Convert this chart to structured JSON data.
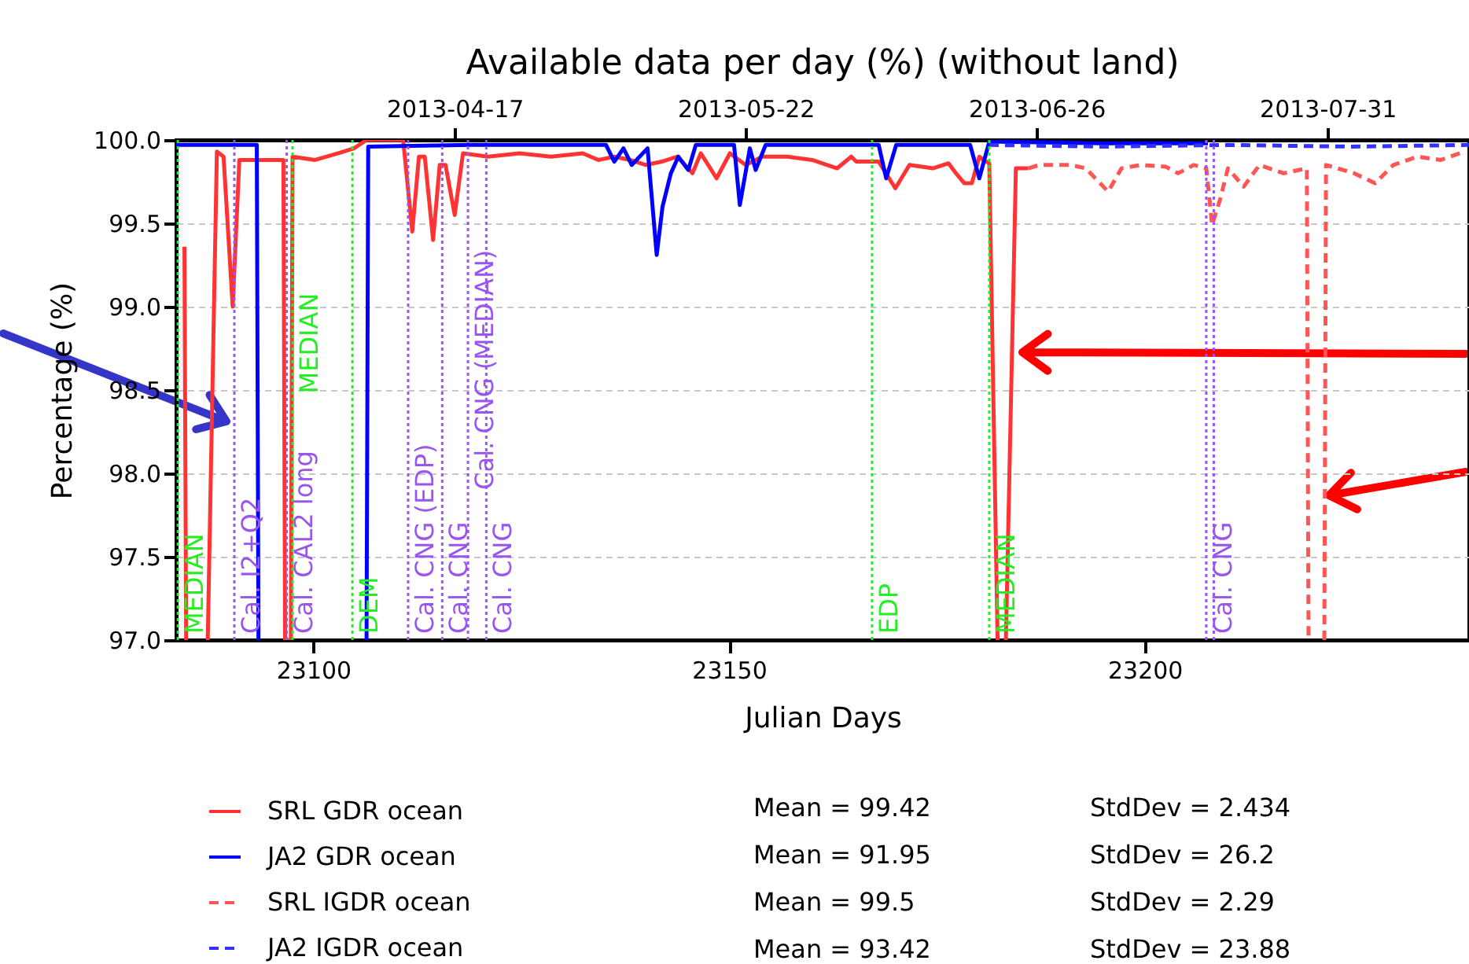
{
  "chart_data": {
    "type": "line",
    "title": "Available data per day (%) (without land)",
    "xlabel": "Julian Days",
    "ylabel": "Percentage (%)",
    "xlim": [
      23083.5,
      23239
    ],
    "xticks": [
      23100,
      23150,
      23200
    ],
    "x2lim": [
      "2013-03-14T12:00",
      "2013-08-17"
    ],
    "x2ticks": [
      "2013-04-17",
      "2013-05-22",
      "2013-06-26",
      "2013-07-31"
    ],
    "ylim": [
      97,
      100
    ],
    "yticks": [
      {
        "value": 97,
        "label": "97.0"
      },
      97.5,
      {
        "value": 98,
        "label": "98.0"
      },
      98.5,
      {
        "value": 99,
        "label": "99.0"
      },
      99.5,
      {
        "value": 100,
        "label": "100.0"
      }
    ],
    "grid": "y",
    "legend": "bottom",
    "series": [
      {
        "name": "SRL GDR ocean",
        "color": "#ff3333",
        "line_style": "solid",
        "x": [
          23084.5,
          23084.7,
          23086,
          23087.3,
          23088.4,
          23089.2,
          23090.3,
          23091.1,
          23092.6,
          23094.9,
          23096.4,
          23096.6,
          23097.3,
          23097.5,
          23100.2,
          23103,
          23104.9,
          23106.4,
          23110.8,
          23111.9,
          23112.7,
          23113.4,
          23114.4,
          23115.2,
          23115.9,
          23117,
          23118,
          23121,
          23124.8,
          23128.6,
          23132.4,
          23134.3,
          23136.2,
          23138.1,
          23140,
          23141.9,
          23143.8,
          23145.6,
          23146.6,
          23148.5,
          23150.1,
          23152,
          23154,
          23157,
          23160,
          23163,
          23164.7,
          23165.3,
          23168,
          23170,
          23171.7,
          23174.5,
          23176.4,
          23177.3,
          23178.3,
          23179.2,
          23180.1,
          23180.6,
          23181.3,
          23182.3,
          23182.9,
          23183.3,
          23184.5,
          23185.8,
          23186.0
        ],
        "values": [
          99.36,
          97,
          null,
          97,
          99.93,
          99.9,
          99.0,
          99.88,
          99.88,
          99.88,
          99.88,
          97,
          97,
          99.9,
          99.88,
          99.92,
          99.95,
          100,
          100,
          99.45,
          99.9,
          99.9,
          99.4,
          99.85,
          99.85,
          99.55,
          99.92,
          99.9,
          99.92,
          99.9,
          99.92,
          99.88,
          99.9,
          99.88,
          99.85,
          99.87,
          99.9,
          99.8,
          99.92,
          99.77,
          99.92,
          99.85,
          99.9,
          99.9,
          99.88,
          99.83,
          99.9,
          99.87,
          99.87,
          99.71,
          99.85,
          99.83,
          99.86,
          99.8,
          99.74,
          99.74,
          99.9,
          99.88,
          99.86,
          97,
          null,
          97,
          99.83,
          99.83,
          99.83
        ]
      },
      {
        "name": "JA2 GDR ocean",
        "color": "#0000ff",
        "line_style": "solid",
        "x": [
          23083.5,
          23088.8,
          23093.2,
          23093.4,
          23100,
          23106.4,
          23106.6,
          23119.1,
          23135.2,
          23136.2,
          23137.3,
          23138.3,
          23140.2,
          23141.3,
          23142,
          23143,
          23143.9,
          23145.1,
          23146,
          23150.6,
          23151.3,
          23152.5,
          23153.2,
          23154.4,
          23168,
          23168.9,
          23170.1,
          23179,
          23180.1,
          23181.3,
          23194.9,
          23207.6
        ],
        "values": [
          99.97,
          99.97,
          99.97,
          97,
          null,
          97,
          99.96,
          99.97,
          99.97,
          99.87,
          99.95,
          99.85,
          99.95,
          99.31,
          99.6,
          99.8,
          99.9,
          99.82,
          99.97,
          99.97,
          99.61,
          99.95,
          99.82,
          99.97,
          99.97,
          99.77,
          99.97,
          99.97,
          99.77,
          99.99,
          99.98,
          99.98
        ]
      },
      {
        "name": "SRL IGDR ocean",
        "color": "#ff5555",
        "line_style": "dashed",
        "x": [
          23186,
          23187.3,
          23191.1,
          23192.9,
          23195.6,
          23197.2,
          23199.6,
          23202.5,
          23204,
          23205.9,
          23207.4,
          23208.1,
          23209.1,
          23210,
          23211.9,
          23213.8,
          23216.7,
          23219.5,
          23219.7,
          23220.5,
          23221.6,
          23221.8,
          23225.2,
          23227.7,
          23229.9,
          23232.8,
          23235.6,
          23238.4
        ],
        "values": [
          99.83,
          99.85,
          99.85,
          99.83,
          99.69,
          99.83,
          99.85,
          99.84,
          99.8,
          99.85,
          99.83,
          99.49,
          99.65,
          99.83,
          99.72,
          99.85,
          99.8,
          99.83,
          97,
          null,
          97,
          99.85,
          99.8,
          99.74,
          99.85,
          99.9,
          99.88,
          99.93
        ]
      },
      {
        "name": "JA2 IGDR ocean",
        "color": "#3333ff",
        "line_style": "dashed",
        "x": [
          23181.3,
          23195,
          23210,
          23225,
          23239
        ],
        "values": [
          99.97,
          99.96,
          99.97,
          99.96,
          99.97
        ]
      }
    ],
    "ref_lines": [
      {
        "axis": "x",
        "value": 23083.7,
        "label": "MEDIAN",
        "color": "#22ee22",
        "line_style": "dotted"
      },
      {
        "axis": "x",
        "value": 23090.5,
        "label": "Cal. I2+Q2",
        "color": "#9955ee",
        "line_style": "dotted"
      },
      {
        "axis": "x",
        "value": 23096.8,
        "label": "Cal. CAL2 long",
        "color": "#9955ee",
        "line_style": "dotted"
      },
      {
        "axis": "x",
        "value": 23097.5,
        "label": "MEDIAN",
        "color": "#22ee22",
        "line_style": "dotted"
      },
      {
        "axis": "x",
        "value": 23104.7,
        "label": "DEM",
        "color": "#22ee22",
        "line_style": "dotted"
      },
      {
        "axis": "x",
        "value": 23111.4,
        "label": "Cal. CNG (EDP)",
        "color": "#9955ee",
        "line_style": "dotted"
      },
      {
        "axis": "x",
        "value": 23115.5,
        "label": "Cal. CNG",
        "color": "#9955ee",
        "line_style": "dotted"
      },
      {
        "axis": "x",
        "value": 23118.6,
        "label": "Cal. CNG (MEDIAN)",
        "color": "#9955ee",
        "line_style": "dotted"
      },
      {
        "axis": "x",
        "value": 23120.8,
        "label": "Cal. CNG",
        "color": "#9955ee",
        "line_style": "dotted"
      },
      {
        "axis": "x",
        "value": 23167.2,
        "label": "EDP",
        "color": "#22ee22",
        "line_style": "dotted"
      },
      {
        "axis": "x",
        "value": 23181.3,
        "label": "MEDIAN",
        "color": "#22ee22",
        "line_style": "dotted"
      },
      {
        "axis": "x",
        "value": 23207.4,
        "label": "Cal. CNG",
        "color": "#9955ee",
        "line_style": "dotted"
      },
      {
        "axis": "x",
        "value": 23208.3,
        "label": null,
        "color": "#9955ee",
        "line_style": "dotted"
      }
    ],
    "annotations": [
      "Mean = 99.42",
      "StdDev = 2.434",
      "Mean = 91.95",
      "StdDev = 26.2",
      "Mean = 99.5",
      "StdDev = 2.29",
      "Mean = 93.42",
      "StdDev = 23.88"
    ]
  }
}
